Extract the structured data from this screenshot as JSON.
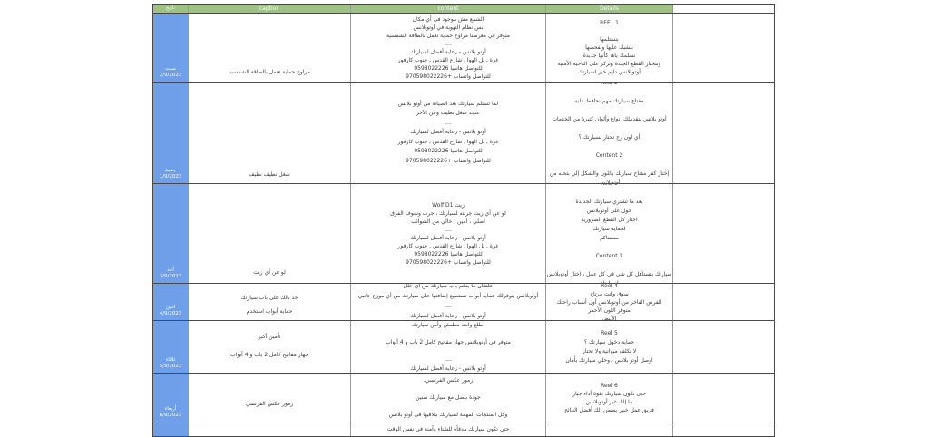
{
  "header": {
    "col_date": "تاريخ",
    "col_caption": "caption",
    "col_content": "content",
    "col_details": "Details",
    "col_extra": ""
  },
  "colors": {
    "header_green": "#9dc284",
    "date_blue": "#6f9fe8",
    "grid_line": "#4a4a4a"
  },
  "rows": [
    {
      "day": "سبت",
      "date": "2/9/2023",
      "caption": [
        "مراوح حماية تعمل بالطاقة الشمسية"
      ],
      "content": [
        "الشمع مش موجود في أي مكان",
        "بس نظام التهوية في أوتوبلانس",
        "متوفر في معرضنا مراوح حماية تعمل بالطاقة الشمسية",
        "....",
        "أوتو بلانس - رعاية أفضل لسيارتك",
        "غزة , تل الهوا , شارع القدس , جنوب كارفور",
        "للتواصل هاتفيا 0598022226",
        "للتواصل واتساب +970598022226"
      ],
      "details": [
        "REEL 1",
        "",
        "بنستلمها",
        "بنشيك عليها ونفحصها",
        "نسلمك ياها كأنها جديدة",
        "وبنختار القطع الجيدة ونركز على الناحية الأمنية",
        "أوتوبلانس دايم خير لسيارتك"
      ],
      "extra": ""
    },
    {
      "day": "جمعة",
      "date": "1/9/2023",
      "caption": [
        "شغل نظيف نظيف"
      ],
      "content": [
        "لما تستلم سيارتك بعد الصيانة من أوتو بلانس",
        "عنجد شغل نظيف وعن الآخر",
        "....",
        "أوتو بلانس - رعاية أفضل لسيارتك",
        "غزة , تل الهوا , شارع القدس , جنوب كارفور",
        "للتواصل هاتفيا 0598022226",
        "للتواصل واتساب +970598022226"
      ],
      "details": [
        "Reel 2",
        "",
        "مفتاح سيارتك مهم نحافظ عليه",
        "",
        "أوتو بلانس بتقدملك أنواع وألوان كتيرة من الخدمات",
        "",
        "أي لون رح تختار لسيارتك ؟",
        "",
        "Content  2",
        "",
        "إختار كفر مفتاح سيارتك باللون والشكل إلي بتحبه من أوتوبلانس"
      ],
      "extra": ""
    },
    {
      "day": "أحد",
      "date": "3/9/2023",
      "caption": [
        "لو عن أي زيت"
      ],
      "content": [
        "زيت Wolf D1",
        "لو عن أي زيت جربته لسيارتك ، جرب وشوف الفرق",
        "أصلي ، أمين ، خالي من الشوائب",
        "....",
        "أوتو بلانس - رعاية أفضل لسيارتك",
        "غزة , تل الهوا , شارع القدس , جنوب كارفور",
        "للتواصل هاتفيا 0598022226",
        "للتواصل واتساب +970598022226"
      ],
      "details": [
        "Reel 3",
        "",
        "بعد ما تشتري سيارتك الجديدة",
        "حول على أوتوبلانس",
        "اختار كل القطع الضرورية",
        "لحماية سيارتك",
        "مستناكم",
        "",
        "Content  3",
        "",
        "سيارتك بتستاهل كل شي في كل عمل ، اختار أوتوبلانس لسيارتك"
      ],
      "extra": ""
    },
    {
      "day": "اثنين",
      "date": "4/9/2023",
      "caption": [
        "خد بالك على باب سيارتك",
        "حماية أبواب استخدم"
      ],
      "content": [
        "علشان ما ينخم باب سيارتك من أي خلل",
        "أوتوبلانس بتوفرلك حماية أبواب تستطيع إضافتها على سيارتك من أي موزع جانبي",
        "....",
        "أوتو بلانس - رعاية أفضل لسيارتك"
      ],
      "details": [
        "Reel  4",
        "سوق وانت مرتاح",
        "الفرش الفاخر من أوتوبلانس أول أسباب راحتك",
        "متوفر اللون الأحمر",
        "الأبيض"
      ],
      "extra": ""
    },
    {
      "day": "ثلاثاء",
      "date": "5/9/2023",
      "caption": [
        "تأمين أكبر",
        "جهاز مفاتيح كامل 2 باب و 4 أبواب"
      ],
      "content": [
        "اطلع وانت مطمئن وأمن سيارتك",
        "",
        "متوفر في أوتوبلانس جهاز مفاتيح كامل 2 باب و 4 أبواب",
        "",
        "....",
        "أوتو بلانس - رعاية أفضل لسيارتك"
      ],
      "details": [
        "Reel 5",
        "حماية دخول سيارتك ؟",
        "لا تكلف ميزانية ولا تحتار",
        "اوصل أوتو بلانس ، وخلي سيارتك بأمان"
      ],
      "extra": ""
    },
    {
      "day": "أربعاء",
      "date": "6/9/2023",
      "caption": [
        "زمور عكس الفرنسي"
      ],
      "content": [
        "زمور عكس الفرنسي.",
        "",
        "جودة بتضل مع سيارتك سنين",
        "",
        "وكل المنتجات المهمة لسيارتك بتلاقيها في أوتو بلانس"
      ],
      "details": [
        "Reel 6",
        "حتى تكون سيارتك بقوة أداء جبار",
        "ما إلك غير أوتوبلانس",
        "فريق عمل خبير بضمن إلك أفضل النتائج"
      ],
      "extra": ""
    },
    {
      "day": "",
      "date": "",
      "caption": [
        ""
      ],
      "content": [
        "حتى تكون سيارتك مدفأة للشتاء وآمنة في نفس الوقت"
      ],
      "details": [
        ""
      ],
      "extra": ""
    }
  ]
}
